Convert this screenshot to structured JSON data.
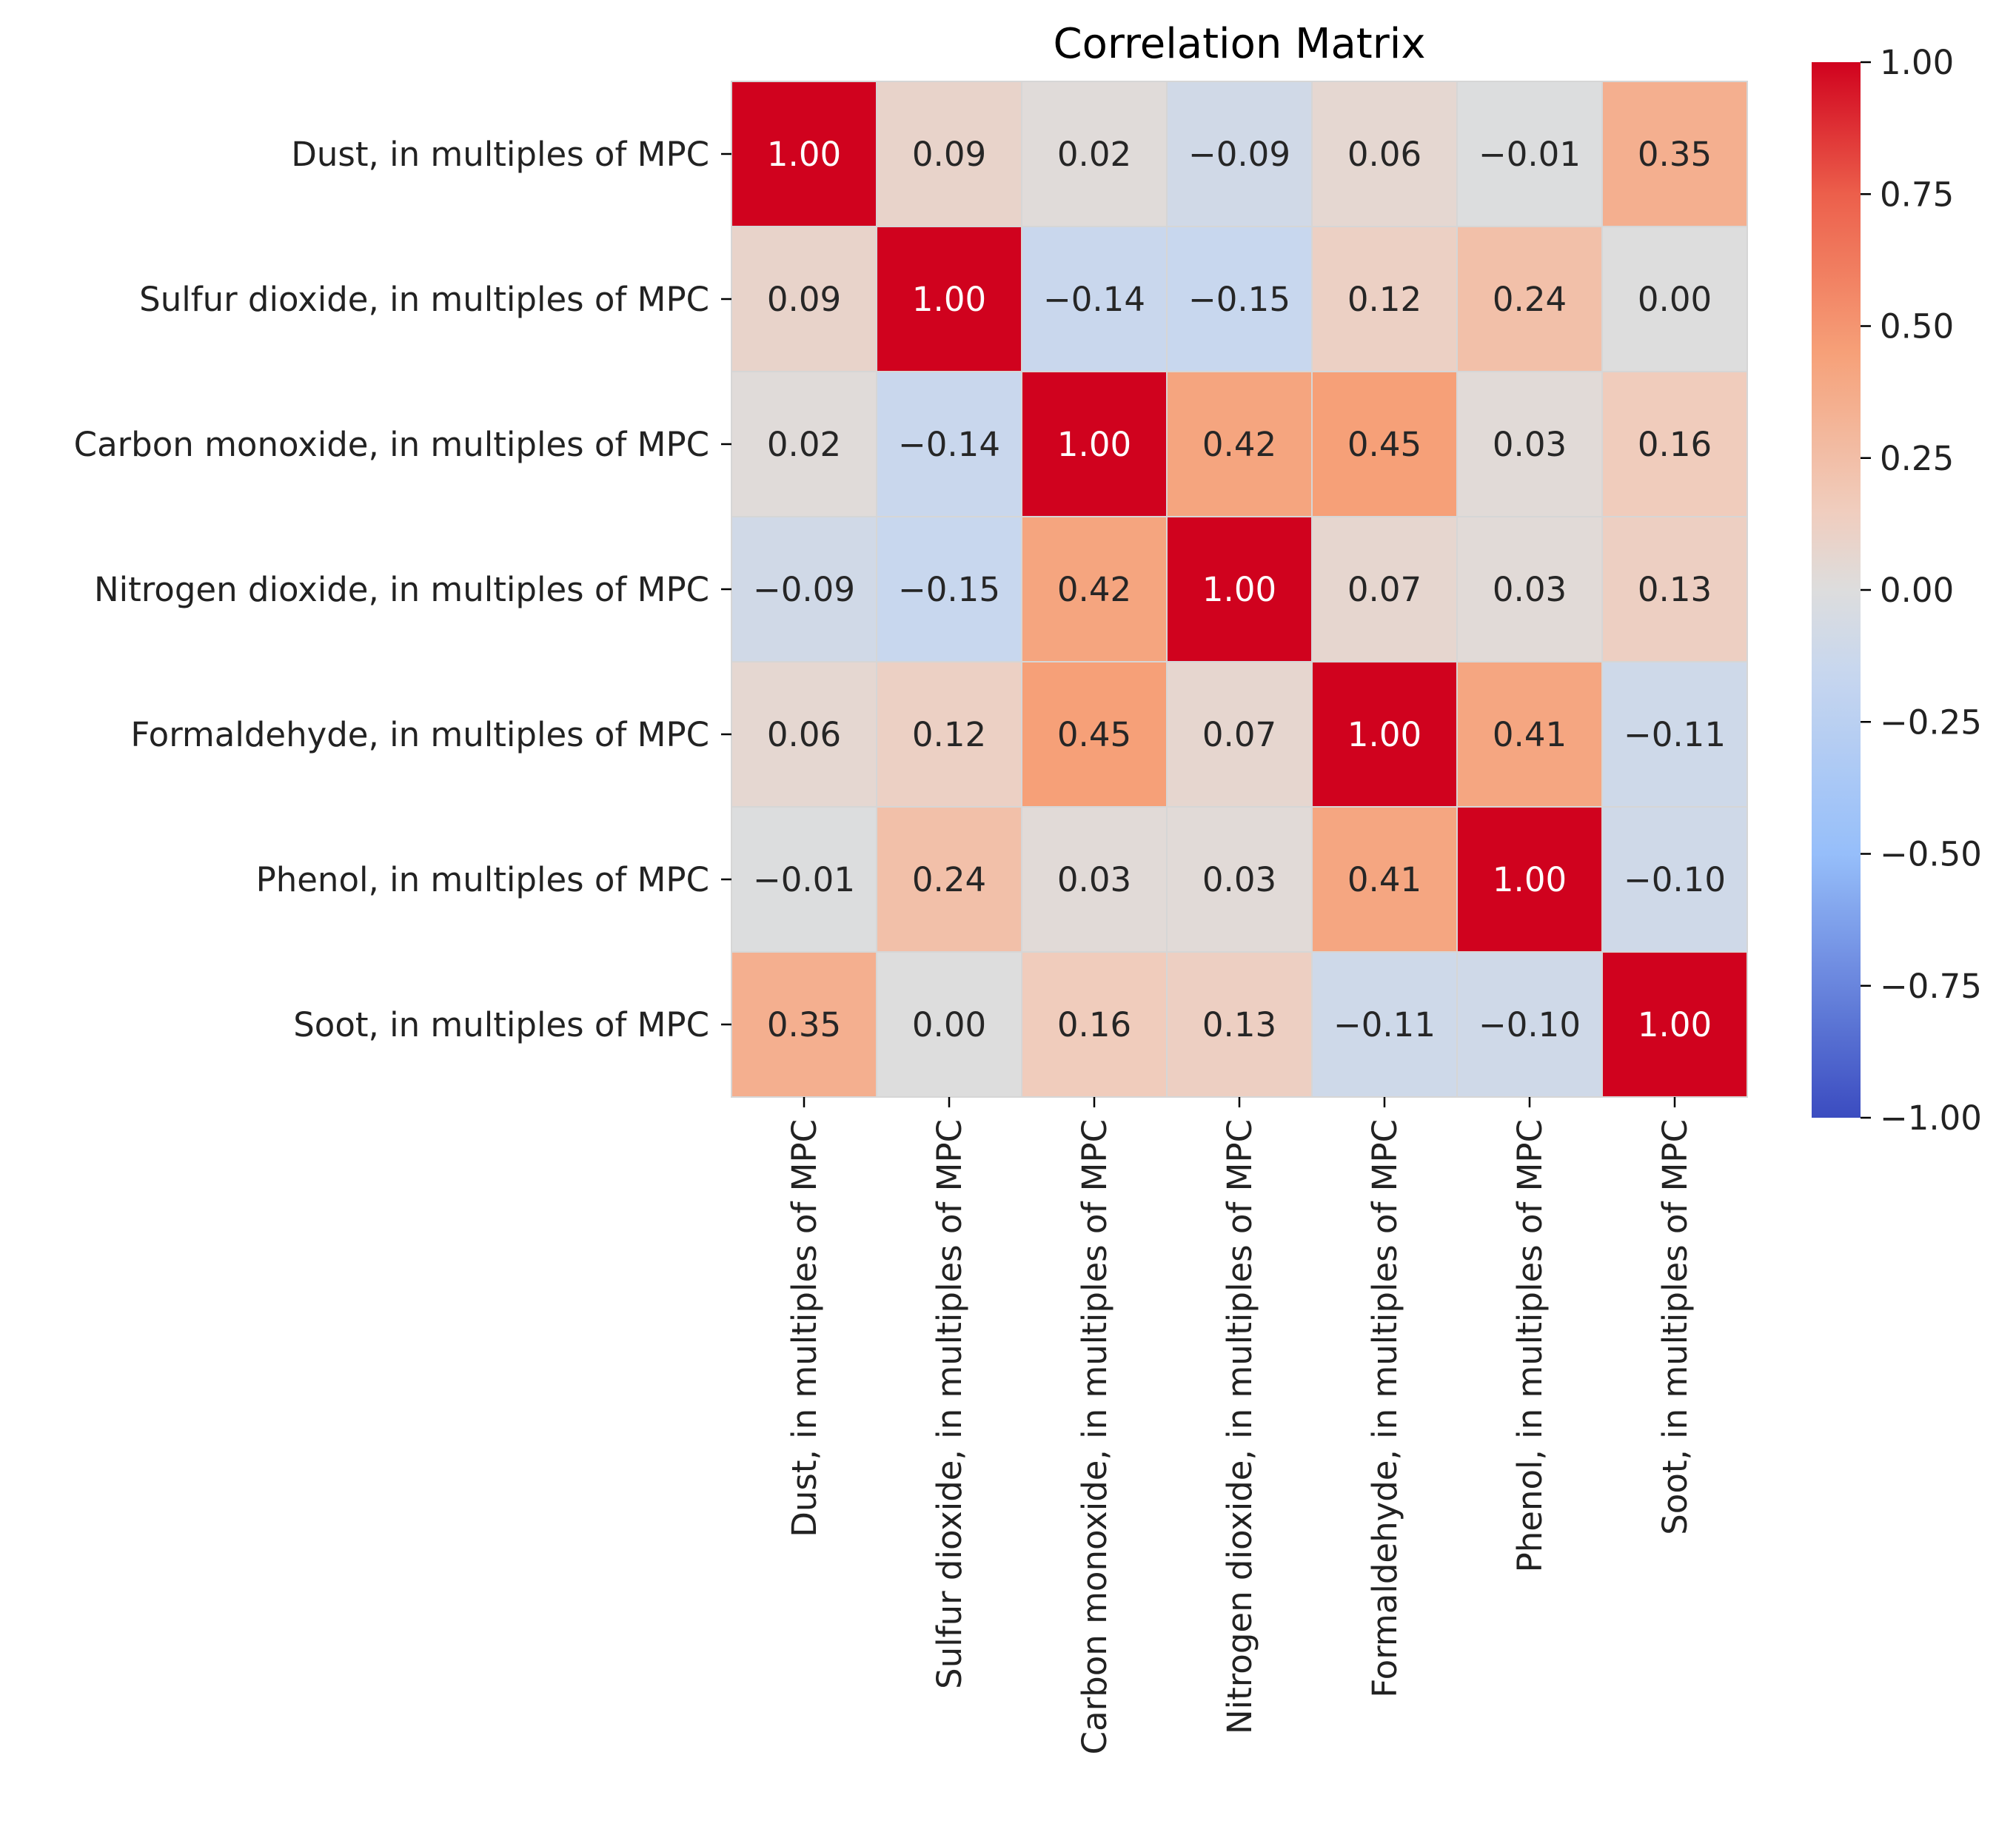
{
  "chart_data": {
    "type": "heatmap",
    "title": "Correlation Matrix",
    "row_labels": [
      "Dust, in multiples of MPC",
      "Sulfur dioxide, in multiples of MPC",
      "Carbon monoxide, in multiples of MPC",
      "Nitrogen dioxide, in multiples of MPC",
      "Formaldehyde, in multiples of MPC",
      "Phenol, in multiples of MPC",
      "Soot, in multiples of MPC"
    ],
    "col_labels": [
      "Dust, in multiples of MPC",
      "Sulfur dioxide, in multiples of MPC",
      "Carbon monoxide, in multiples of MPC",
      "Nitrogen dioxide, in multiples of MPC",
      "Formaldehyde, in multiples of MPC",
      "Phenol, in multiples of MPC",
      "Soot, in multiples of MPC"
    ],
    "values": [
      [
        1.0,
        0.09,
        0.02,
        -0.09,
        0.06,
        -0.01,
        0.35
      ],
      [
        0.09,
        1.0,
        -0.14,
        -0.15,
        0.12,
        0.24,
        0.0
      ],
      [
        0.02,
        -0.14,
        1.0,
        0.42,
        0.45,
        0.03,
        0.16
      ],
      [
        -0.09,
        -0.15,
        0.42,
        1.0,
        0.07,
        0.03,
        0.13
      ],
      [
        0.06,
        0.12,
        0.45,
        0.07,
        1.0,
        0.41,
        -0.11
      ],
      [
        -0.01,
        0.24,
        0.03,
        0.03,
        0.41,
        1.0,
        -0.1
      ],
      [
        0.35,
        0.0,
        0.16,
        0.13,
        -0.11,
        -0.1,
        1.0
      ]
    ],
    "annotation_format": "0.00",
    "colormap": "coolwarm",
    "vmin": -1.0,
    "vmax": 1.0,
    "colorbar_ticks": [
      1.0,
      0.75,
      0.5,
      0.25,
      0.0,
      -0.25,
      -0.5,
      -0.75,
      -1.0
    ],
    "colorbar_tick_labels": [
      "1.00",
      "0.75",
      "0.50",
      "0.25",
      "0.00",
      "−0.25",
      "−0.50",
      "−0.75",
      "−1.00"
    ],
    "colors": {
      "low": "#3b4cc0",
      "mid": "#dddddd",
      "high": "#d0021e"
    }
  }
}
